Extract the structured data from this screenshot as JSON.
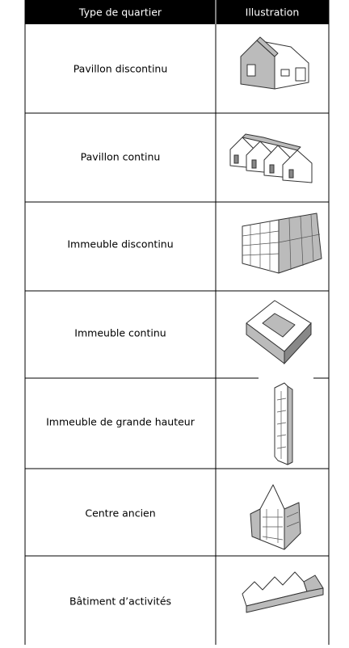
{
  "table": {
    "headers": [
      "Type de quartier",
      "Illustration"
    ],
    "rows": [
      "Pavillon discontinu",
      "Pavillon continu",
      "Immeuble discontinu",
      "Immeuble continu",
      "Immeuble de grande hauteur",
      "Centre ancien",
      "Bâtiment d’activités"
    ]
  }
}
